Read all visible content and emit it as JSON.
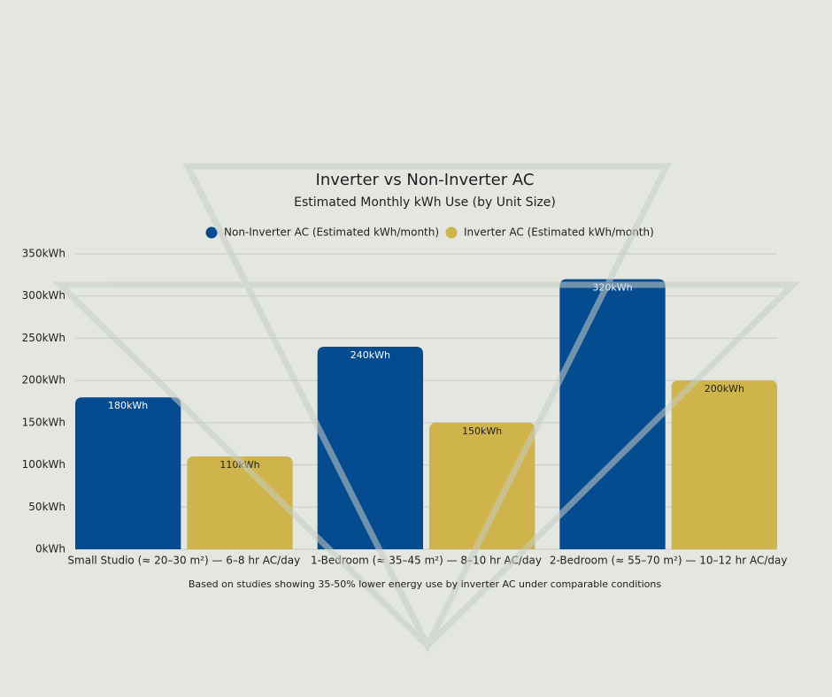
{
  "chart_data": {
    "type": "bar",
    "title": "Inverter vs Non-Inverter AC",
    "subtitle": "Estimated Monthly kWh Use (by Unit Size)",
    "footnote": "Based on studies showing 35-50% lower energy use by inverter AC under comparable conditions",
    "categories": [
      "Small Studio (≈ 20–30 m²) — 6–8 hr AC/day",
      "1-Bedroom (≈ 35–45 m²) — 8–10 hr AC/day",
      "2-Bedroom (≈ 55–70 m²) — 10–12 hr AC/day"
    ],
    "series": [
      {
        "name": "Non-Inverter AC (Estimated kWh/month)",
        "color": "#054b8f",
        "values": [
          180,
          240,
          320
        ],
        "value_labels": [
          "180kWh",
          "240kWh",
          "320kWh"
        ]
      },
      {
        "name": "Inverter AC (Estimated kWh/month)",
        "color": "#ceb44b",
        "values": [
          110,
          150,
          200
        ],
        "value_labels": [
          "110kWh",
          "150kWh",
          "200kWh"
        ]
      }
    ],
    "ylim": [
      0,
      350
    ],
    "yticks": [
      {
        "value": 0,
        "label": "0kWh"
      },
      {
        "value": 50,
        "label": "50kWh"
      },
      {
        "value": 100,
        "label": "100kWh"
      },
      {
        "value": 150,
        "label": "150kWh"
      },
      {
        "value": 200,
        "label": "200kWh"
      },
      {
        "value": 250,
        "label": "250kWh"
      },
      {
        "value": 300,
        "label": "300kWh"
      },
      {
        "value": 350,
        "label": "350kWh"
      }
    ],
    "grid": true
  }
}
